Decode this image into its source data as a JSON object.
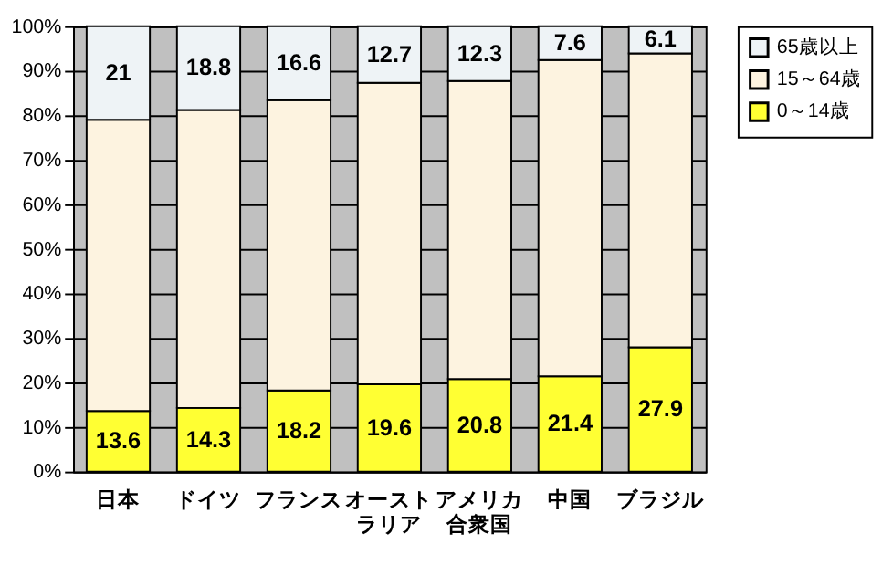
{
  "chart_data": {
    "type": "bar",
    "stacked": true,
    "categories": [
      "日本",
      "ドイツ",
      "フランス",
      "オーストラリア",
      "アメリカ合衆国",
      "中国",
      "ブラジル"
    ],
    "series": [
      {
        "name": "0～14歳",
        "color": "#ffff33",
        "values": [
          13.6,
          14.3,
          18.2,
          19.6,
          20.8,
          21.4,
          27.9
        ],
        "value_labels": [
          "13.6",
          "14.3",
          "18.2",
          "19.6",
          "20.8",
          "21.4",
          "27.9"
        ]
      },
      {
        "name": "15～64歳",
        "color": "#fdf3e0",
        "values": [
          65.4,
          66.9,
          65.2,
          67.7,
          66.9,
          71.0,
          66.0
        ]
      },
      {
        "name": "65歳以上",
        "color": "#eef3f6",
        "values": [
          21,
          18.8,
          16.6,
          12.7,
          12.3,
          7.6,
          6.1
        ],
        "value_labels": [
          "21",
          "18.8",
          "16.6",
          "12.7",
          "12.3",
          "7.6",
          "6.1"
        ]
      }
    ],
    "ylim": [
      0,
      100
    ],
    "yticks": [
      {
        "value": 0,
        "label": "0%"
      },
      {
        "value": 10,
        "label": "10%"
      },
      {
        "value": 20,
        "label": "20%"
      },
      {
        "value": 30,
        "label": "30%"
      },
      {
        "value": 40,
        "label": "40%"
      },
      {
        "value": 50,
        "label": "50%"
      },
      {
        "value": 60,
        "label": "60%"
      },
      {
        "value": 70,
        "label": "70%"
      },
      {
        "value": 80,
        "label": "80%"
      },
      {
        "value": 90,
        "label": "90%"
      },
      {
        "value": 100,
        "label": "100%"
      }
    ],
    "grid": "y",
    "legend": "right"
  }
}
